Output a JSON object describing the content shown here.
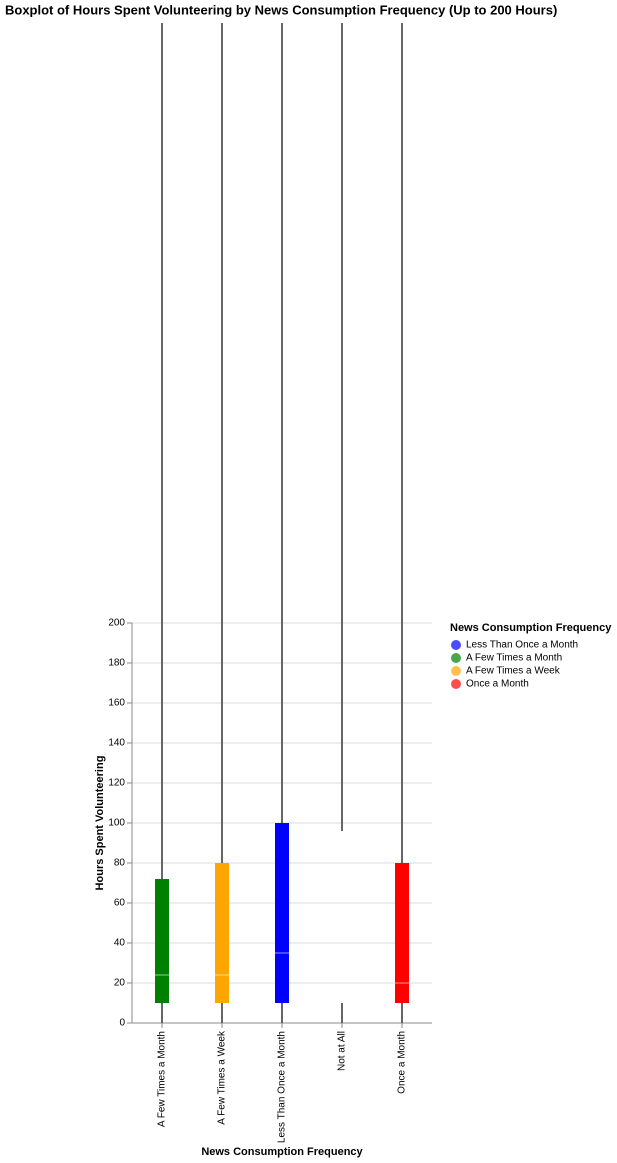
{
  "chart_data": {
    "type": "boxplot",
    "title": "Boxplot of Hours Spent Volunteering by News Consumption Frequency (Up to 200 Hours)",
    "x_label": "News Consumption Frequency",
    "y_label": "Hours Spent Volunteering",
    "categories": [
      "A Few Times a Month",
      "A Few Times a Week",
      "Less Than Once a Month",
      "Not at All",
      "Once a Month"
    ],
    "colors": [
      "#008000",
      "#ffa500",
      "#0000ff",
      null,
      "#ff0000"
    ],
    "min": [
      0,
      0,
      0,
      0,
      0
    ],
    "q1": [
      10,
      10,
      10,
      10,
      10
    ],
    "median": [
      24,
      24,
      35,
      null,
      20
    ],
    "q3": [
      72,
      80,
      100,
      96,
      80
    ],
    "max": [
      500,
      500,
      500,
      500,
      500
    ],
    "ylim": [
      0,
      200
    ],
    "yticks": [
      0,
      20,
      40,
      60,
      80,
      100,
      120,
      140,
      160,
      180,
      200
    ],
    "grid": true,
    "legend": {
      "title": "News Consumption Frequency",
      "position": "right",
      "entries": [
        {
          "name": "Less Than Once a Month",
          "color": "#0000ff"
        },
        {
          "name": "A Few Times a Month",
          "color": "#008000"
        },
        {
          "name": "A Few Times a Week",
          "color": "#ffa500"
        },
        {
          "name": "Once a Month",
          "color": "#ff0000"
        }
      ]
    }
  }
}
